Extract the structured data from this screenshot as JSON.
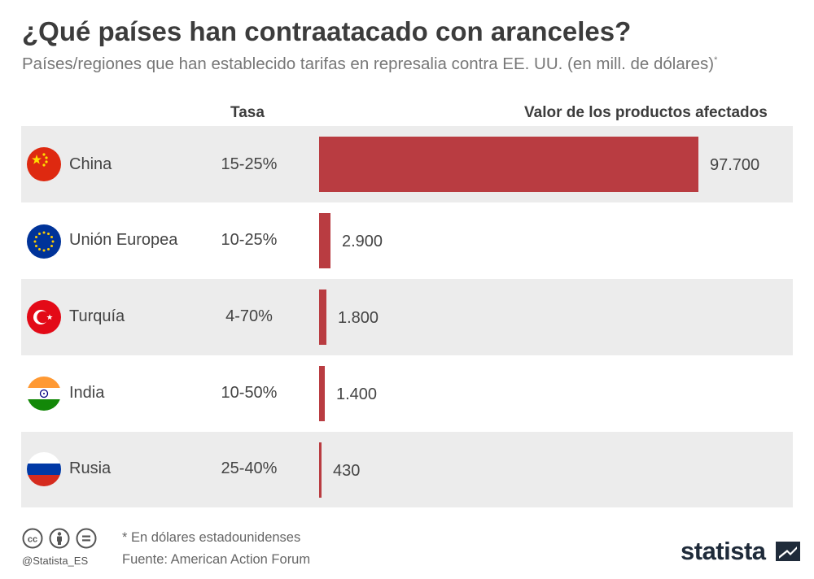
{
  "title": "¿Qué países han contraatacado con aranceles?",
  "subtitle": "Países/regiones que han establecido tarifas en represalia contra EE. UU. (en mill. de dólares)",
  "subtitle_mark": "*",
  "columns": {
    "rate": "Tasa",
    "value": "Valor de los productos afectados"
  },
  "colors": {
    "bar": "#b93c41",
    "row_shade": "#ececec"
  },
  "chart_data": {
    "type": "bar",
    "orientation": "horizontal",
    "title": "¿Qué países han contraatacado con aranceles?",
    "xlabel": "Valor de los productos afectados",
    "ylabel": "",
    "xlim": [
      0,
      97700
    ],
    "categories": [
      "China",
      "Unión Europea",
      "Turquía",
      "India",
      "Rusia"
    ],
    "values": [
      97700,
      2900,
      1800,
      1400,
      430
    ],
    "labels": [
      "97.700",
      "2.900",
      "1.800",
      "1.400",
      "430"
    ],
    "rates": [
      "15-25%",
      "10-25%",
      "4-70%",
      "10-50%",
      "25-40%"
    ],
    "flags": [
      "china-flag",
      "eu-flag",
      "turkey-flag",
      "india-flag",
      "russia-flag"
    ]
  },
  "footer": {
    "note": "* En dólares estadounidenses",
    "source": "Fuente: American Action Forum",
    "handle": "@Statista_ES",
    "brand": "statista",
    "license_icons": [
      "cc-icon",
      "person-icon",
      "equals-icon"
    ]
  }
}
